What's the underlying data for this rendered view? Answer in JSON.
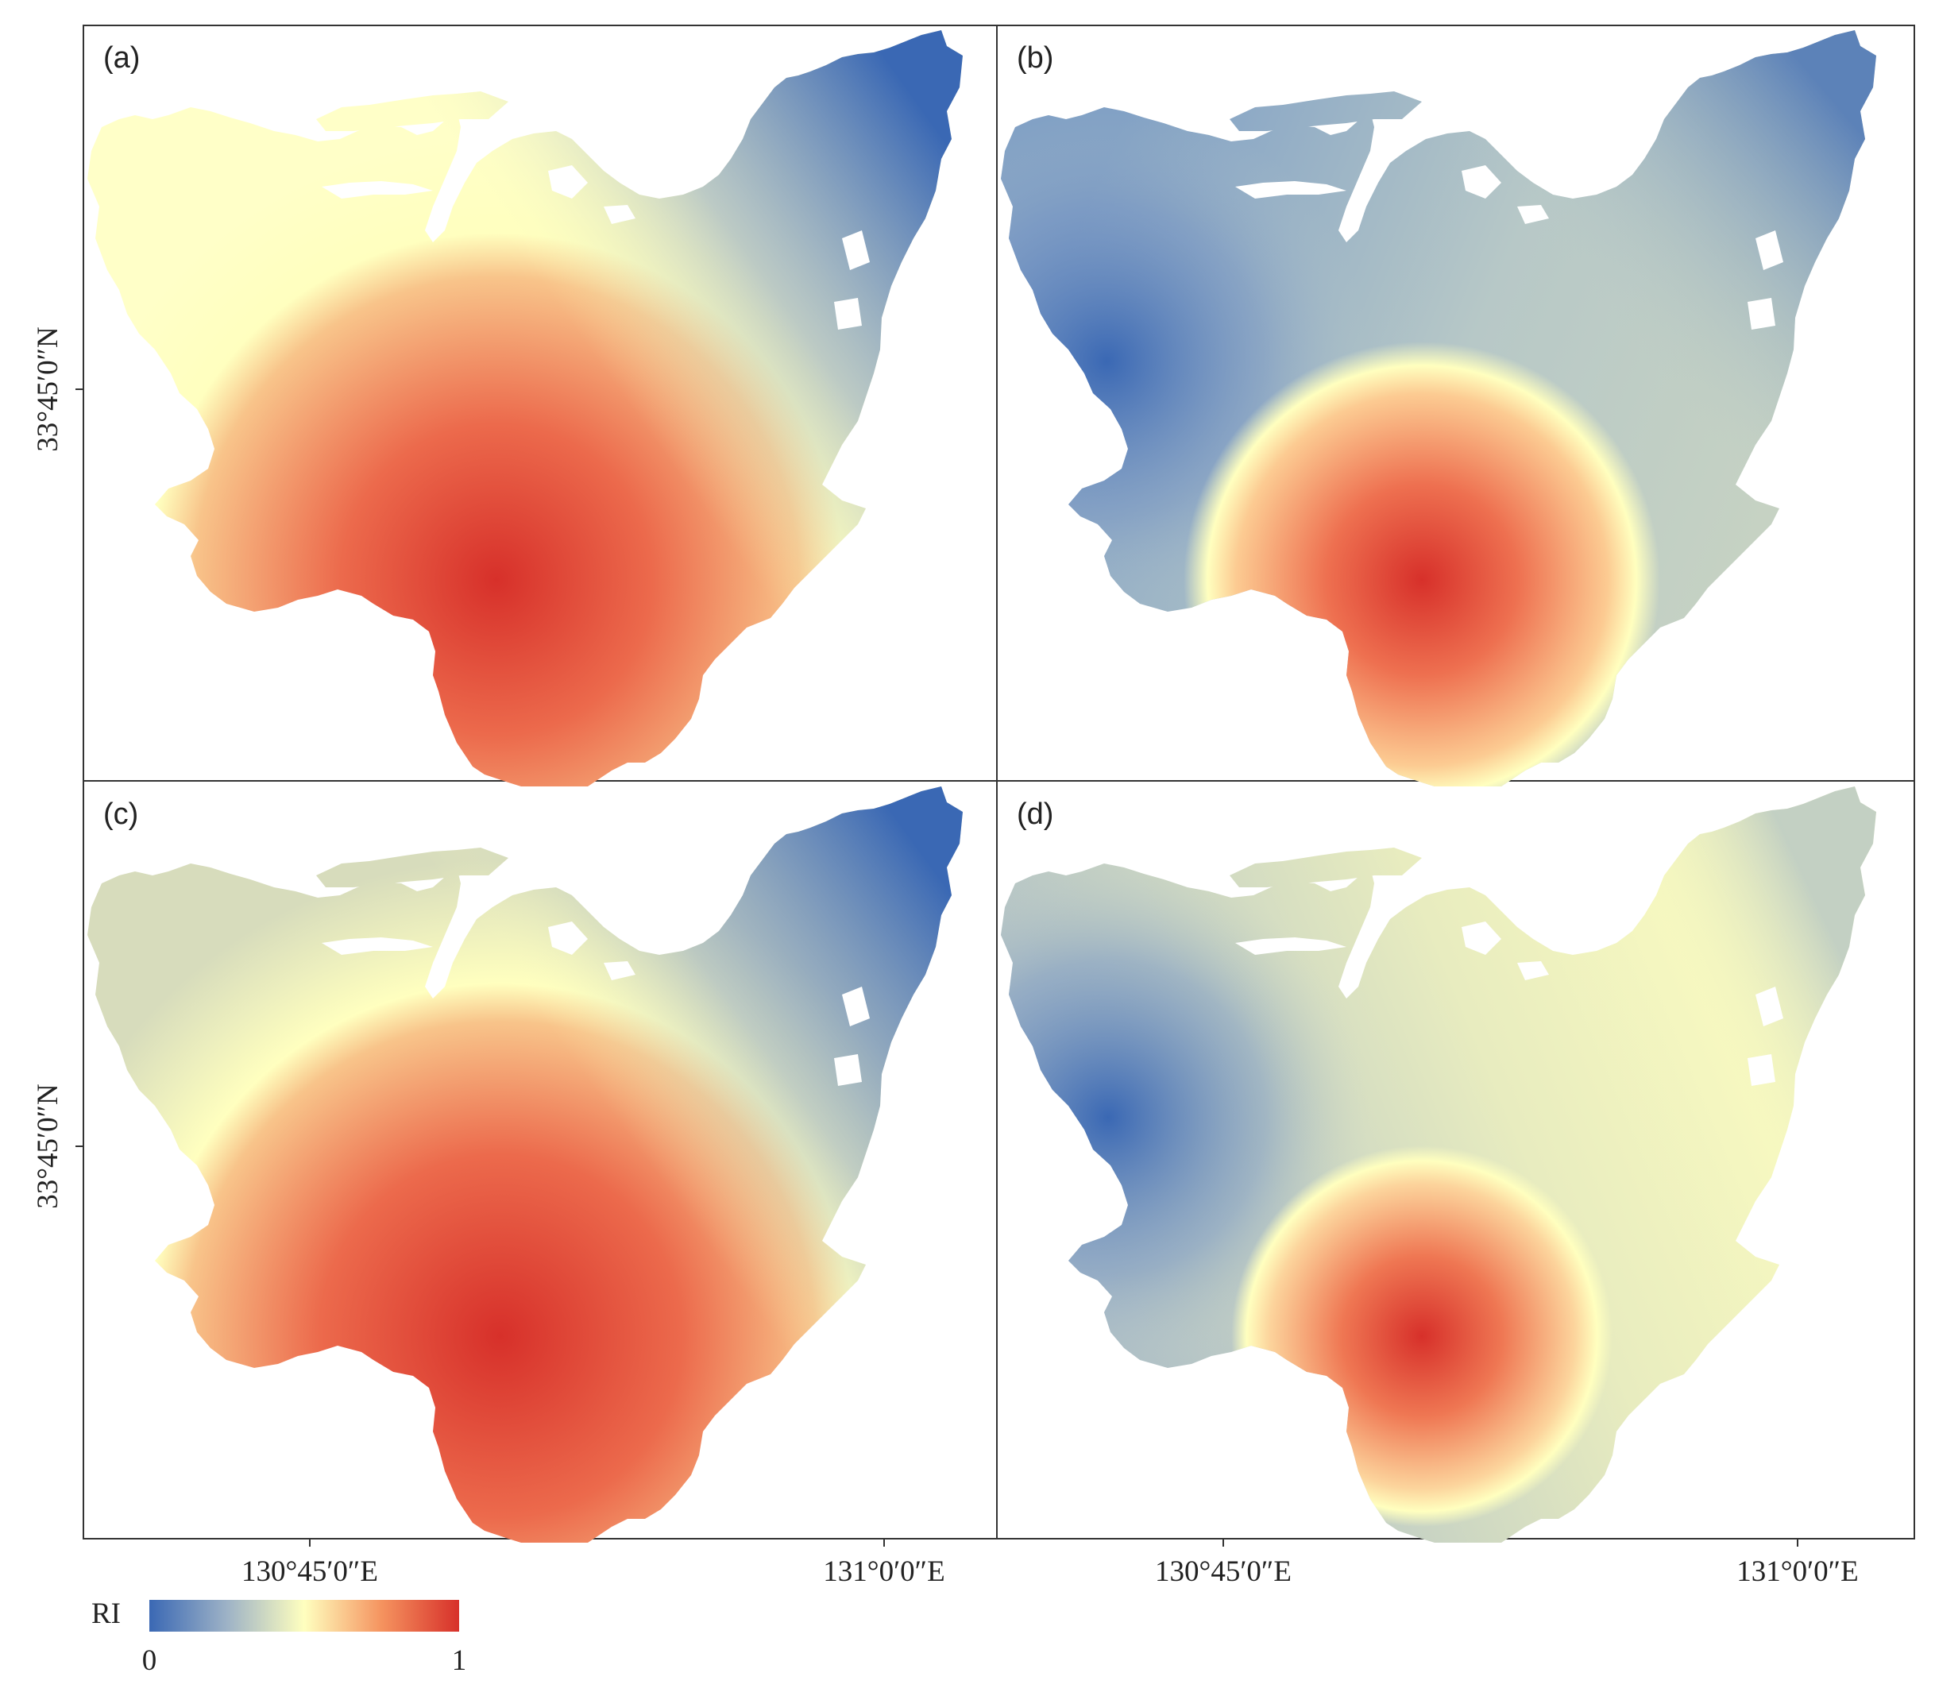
{
  "panels": [
    {
      "label": "(a)",
      "hotspots": [
        {
          "role": "high",
          "at": "south-central"
        }
      ]
    },
    {
      "label": "(b)",
      "hotspots": [
        {
          "role": "low",
          "at": "west"
        },
        {
          "role": "high",
          "at": "south-east"
        }
      ]
    },
    {
      "label": "(c)",
      "hotspots": [
        {
          "role": "high",
          "at": "south-central"
        }
      ]
    },
    {
      "label": "(d)",
      "hotspots": [
        {
          "role": "low",
          "at": "west"
        },
        {
          "role": "high",
          "at": "south-east"
        }
      ]
    }
  ],
  "axes": {
    "latitude_label": "33°45′0″N",
    "longitude_labels": [
      "130°45′0″E",
      "131°0′0″E"
    ]
  },
  "legend": {
    "title": "RI",
    "min_label": "0",
    "max_label": "1",
    "colormap": [
      "#3a68b4",
      "#c7d2c4",
      "#ffffbf",
      "#f7b07b",
      "#d7302a"
    ]
  }
}
